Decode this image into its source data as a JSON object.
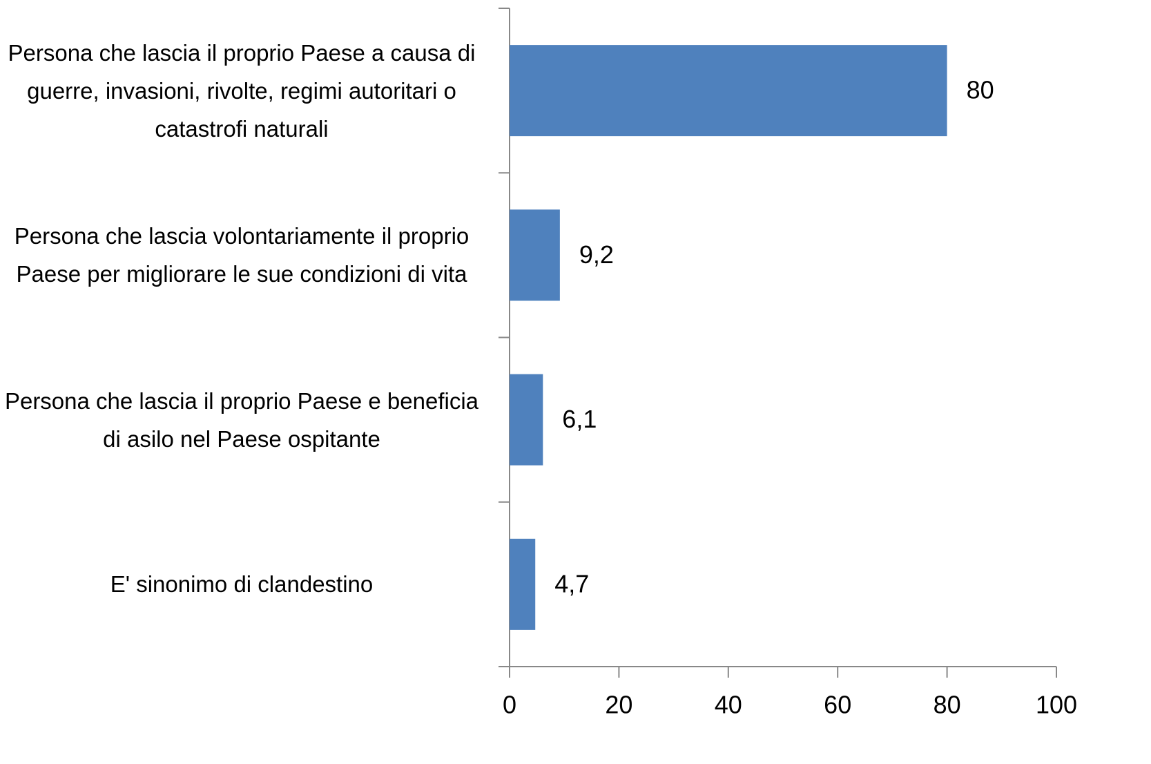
{
  "chart_data": {
    "type": "bar",
    "orientation": "horizontal",
    "categories": [
      "Persona che lascia il proprio Paese a causa di guerre, invasioni, rivolte, regimi autoritari o catastrofi naturali",
      "Persona che lascia volontariamente il proprio Paese per migliorare le sue condizioni di vita",
      "Persona che lascia il proprio Paese e beneficia di asilo nel Paese ospitante",
      "E' sinonimo di clandestino"
    ],
    "values": [
      80,
      9.2,
      6.1,
      4.7
    ],
    "value_labels": [
      "80",
      "9,2",
      "6,1",
      "4,7"
    ],
    "color": "#4f81bd",
    "xlim": [
      0,
      100
    ],
    "xticks": [
      0,
      20,
      40,
      60,
      80,
      100
    ],
    "grid": false
  }
}
